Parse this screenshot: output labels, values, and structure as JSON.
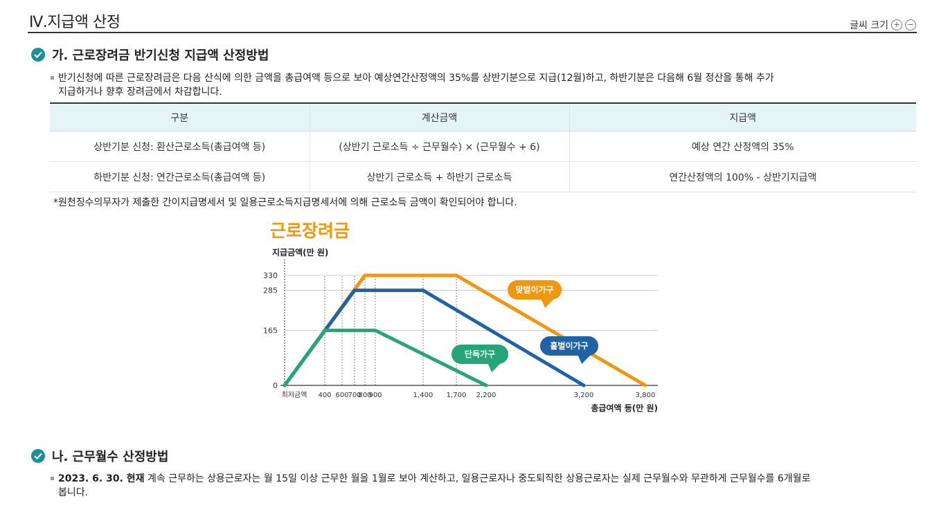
{
  "page_title": "Ⅳ.지급액 산정",
  "font_size_control": {
    "label": "글씨 크기",
    "increase": "+",
    "decrease": "−"
  },
  "section_a": {
    "title": "가. 근로장려금 반기신청 지급액 산정방법",
    "paragraph_line1": "반기신청에 따른 근로장려금은 다음 산식에 의한 금액을 총급여액 등으로 보아 예상연간산정액의 35%를 상반기분으로 지급(12월)하고, 하반기분은 다음해 6월 정산을 통해 추가",
    "paragraph_line2": "지급하거나 향후 장려금에서 차감합니다.",
    "table": {
      "headers": [
        "구분",
        "계산금액",
        "지급액"
      ],
      "rows": [
        [
          "상반기분 신청: 환산근로소득(총급여액 등)",
          "(상반기 근로소득 ÷ 근무월수) × (근무월수 + 6)",
          "예상 연간 산정액의 35%"
        ],
        [
          "하반기분 신청: 연간근로소득(총급여액 등)",
          "상반기 근로소득 + 하반기 근로소득",
          "연간산정액의 100% - 상반기지급액"
        ]
      ]
    },
    "note": "*원천징수의무자가 제출한 간이지급명세서 및 일용근로소득지급명세서에 의해 근로소득 금액이 확인되어야 합니다."
  },
  "chart_data": {
    "type": "line",
    "title": "근로장려금",
    "ylabel": "지급금액(만 원)",
    "xlabel": "총급여액 등(만 원)",
    "x_tick_labels": [
      "최저금액",
      "400",
      "600",
      "700",
      "800",
      "900",
      "1,400",
      "1,700",
      "2,200",
      "3,200",
      "3,800"
    ],
    "y_ticks": [
      0,
      165,
      285,
      330
    ],
    "ylim": [
      0,
      330
    ],
    "xlim": [
      0,
      3800
    ],
    "series": [
      {
        "name": "맞벌이가구",
        "color": "#f0960f",
        "points": [
          [
            0,
            0
          ],
          [
            800,
            330
          ],
          [
            1700,
            330
          ],
          [
            3800,
            0
          ]
        ]
      },
      {
        "name": "홑벌이가구",
        "color": "#1f63a6",
        "points": [
          [
            0,
            0
          ],
          [
            700,
            285
          ],
          [
            1400,
            285
          ],
          [
            3200,
            0
          ]
        ]
      },
      {
        "name": "단독가구",
        "color": "#27a57a",
        "points": [
          [
            0,
            0
          ],
          [
            400,
            165
          ],
          [
            900,
            165
          ],
          [
            2200,
            0
          ]
        ]
      }
    ],
    "guide_x": [
      400,
      600,
      700,
      800,
      900,
      1400,
      1700
    ]
  },
  "section_b": {
    "title": "나. 근무월수 산정방법",
    "paragraph_bold": "2023. 6. 30. 현재",
    "paragraph_line1": " 계속 근무하는 상용근로자는 월 15일 이상 근무한 월을 1월로 보아 계산하고, 일용근로자나 중도퇴직한 상용근로자는 실제 근무월수와 무관하게 근무월수를 6개월로",
    "paragraph_line2": "봅니다."
  },
  "colors": {
    "accent": "#1a8fa0",
    "chart_title": "#f0960f",
    "table_header_bg": "#e5f4f4"
  }
}
